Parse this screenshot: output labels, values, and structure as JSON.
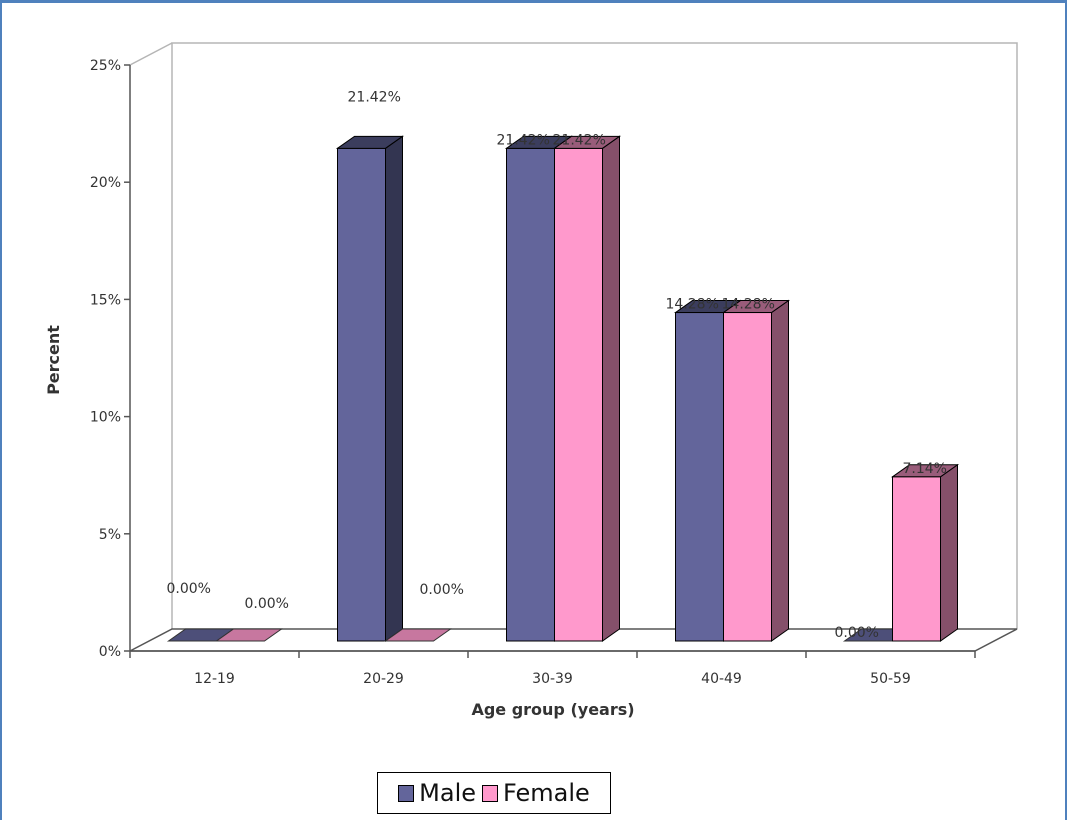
{
  "chart_data": {
    "type": "bar",
    "style": "3d-clustered-column",
    "categories": [
      "12-19",
      "20-29",
      "30-39",
      "40-49",
      "50-59"
    ],
    "series": [
      {
        "name": "Male",
        "values": [
          0.0,
          21.42,
          21.42,
          14.28,
          0.0
        ],
        "labels": [
          "0.00%",
          "21.42%",
          "21.42%",
          "14.28%",
          "0.00%"
        ],
        "color": "#63659b"
      },
      {
        "name": "Female",
        "values": [
          0.0,
          0.0,
          21.42,
          14.28,
          7.14
        ],
        "labels": [
          "0.00%",
          "0.00%",
          "21.42%",
          "14.28%",
          "7.14%"
        ],
        "color": "#ff99cc"
      }
    ],
    "xlabel": "Age group (years)",
    "ylabel": "Percent",
    "ylim": [
      0,
      25
    ],
    "yticks": [
      "0%",
      "5%",
      "10%",
      "15%",
      "20%",
      "25%"
    ],
    "ytick_values": [
      0,
      5,
      10,
      15,
      20,
      25
    ],
    "grid": false,
    "legend_position": "bottom-center"
  },
  "legend": {
    "items": [
      "Male",
      "Female"
    ]
  },
  "colors": {
    "frame_border": "#4f81bd",
    "male": "#63659b",
    "female": "#ff99cc"
  }
}
